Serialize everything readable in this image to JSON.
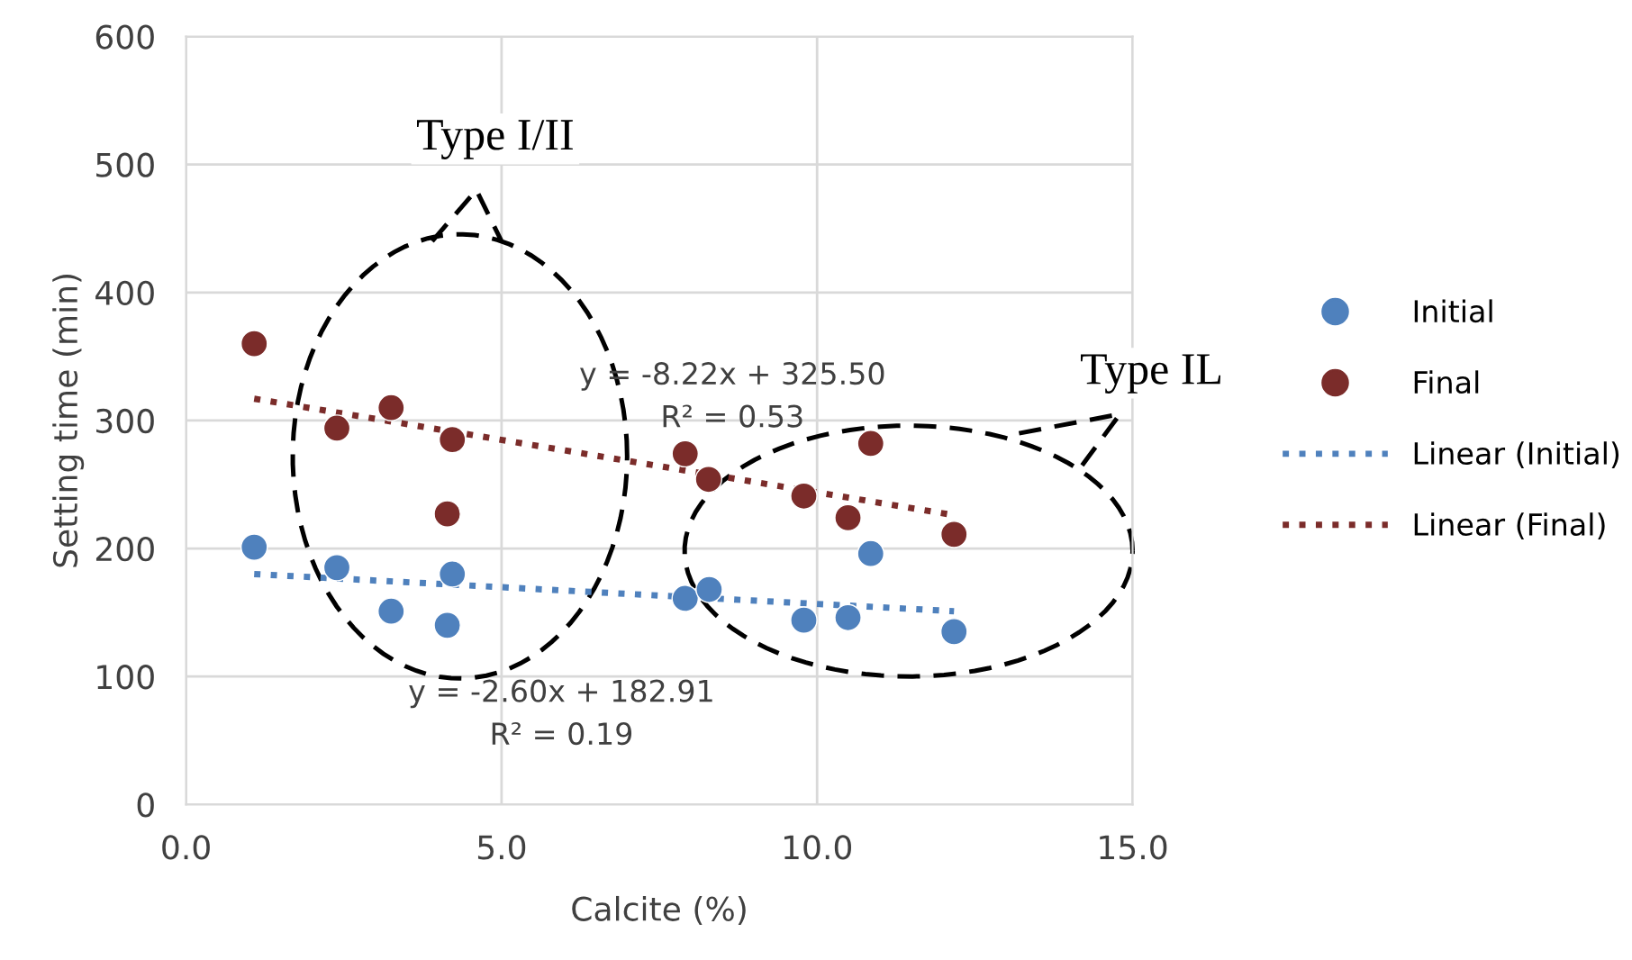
{
  "chart_data": {
    "type": "scatter",
    "xlabel": "Calcite (%)",
    "ylabel": "Setting time (min)",
    "xlim": [
      0,
      15
    ],
    "xticks": [
      {
        "value": 0,
        "label": "0.0"
      },
      {
        "value": 5,
        "label": "5.0"
      },
      {
        "value": 10,
        "label": "10.0"
      },
      {
        "value": 15,
        "label": "15.0"
      }
    ],
    "ylim": [
      0,
      600
    ],
    "yticks": [
      0,
      100,
      200,
      300,
      400,
      500,
      600
    ],
    "grid": true,
    "legend": "right",
    "marker": "circle",
    "series": [
      {
        "name": "Initial",
        "color": "#4f81bd",
        "x": [
          1.08,
          2.39,
          3.25,
          4.14,
          4.22,
          7.91,
          8.29,
          9.79,
          10.49,
          10.85,
          12.17
        ],
        "values": [
          201,
          185,
          151,
          140,
          180,
          161,
          168,
          144,
          146,
          196,
          135
        ]
      },
      {
        "name": "Final",
        "color": "#7b2c2a",
        "x": [
          1.08,
          2.39,
          3.25,
          4.14,
          4.22,
          7.91,
          8.28,
          9.79,
          10.49,
          10.85,
          12.17
        ],
        "values": [
          360,
          294,
          310,
          227,
          285,
          274,
          254,
          241,
          224,
          282,
          211
        ]
      },
      {
        "name": "Linear (Initial)",
        "type": "line",
        "line_style": "dotted",
        "color": "#4f81bd",
        "x": [
          1.08,
          12.17
        ],
        "values": [
          180,
          151
        ],
        "marker": "none"
      },
      {
        "name": "Linear (Final)",
        "type": "line",
        "line_style": "dotted",
        "color": "#7b2c2a",
        "x": [
          1.08,
          12.17
        ],
        "values": [
          317,
          226
        ],
        "marker": "none"
      }
    ],
    "annotations": [
      "y = -8.22x + 325.50\nR² = 0.53",
      "y = -2.60x + 182.91\nR² = 0.19",
      "Type I/II",
      "Type IL"
    ]
  }
}
